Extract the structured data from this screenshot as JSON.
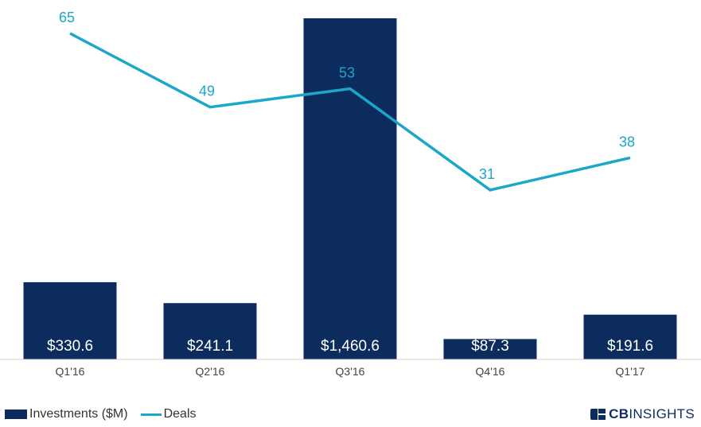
{
  "chart_data": {
    "type": "bar",
    "categories": [
      "Q1'16",
      "Q2'16",
      "Q3'16",
      "Q4'16",
      "Q1'17"
    ],
    "series": [
      {
        "name": "Investments ($M)",
        "type": "bar",
        "values": [
          330.6,
          241.1,
          1460.6,
          87.3,
          191.6
        ],
        "labels": [
          "$330.6",
          "$241.1",
          "$1,460.6",
          "$87.3",
          "$191.6"
        ],
        "color": "#0d2c5e"
      },
      {
        "name": "Deals",
        "type": "line",
        "values": [
          65,
          49,
          53,
          31,
          38
        ],
        "labels": [
          "65",
          "49",
          "53",
          "31",
          "38"
        ],
        "color": "#1aa7c9"
      }
    ],
    "bar_ylim": [
      0,
      1460.6
    ],
    "line_ylim": [
      0,
      65
    ],
    "legend_position": "bottom-left",
    "grid": false
  },
  "legend": {
    "investments_label": "Investments ($M)",
    "deals_label": "Deals"
  },
  "brand": {
    "strong": "CB",
    "light": "INSIGHTS"
  }
}
